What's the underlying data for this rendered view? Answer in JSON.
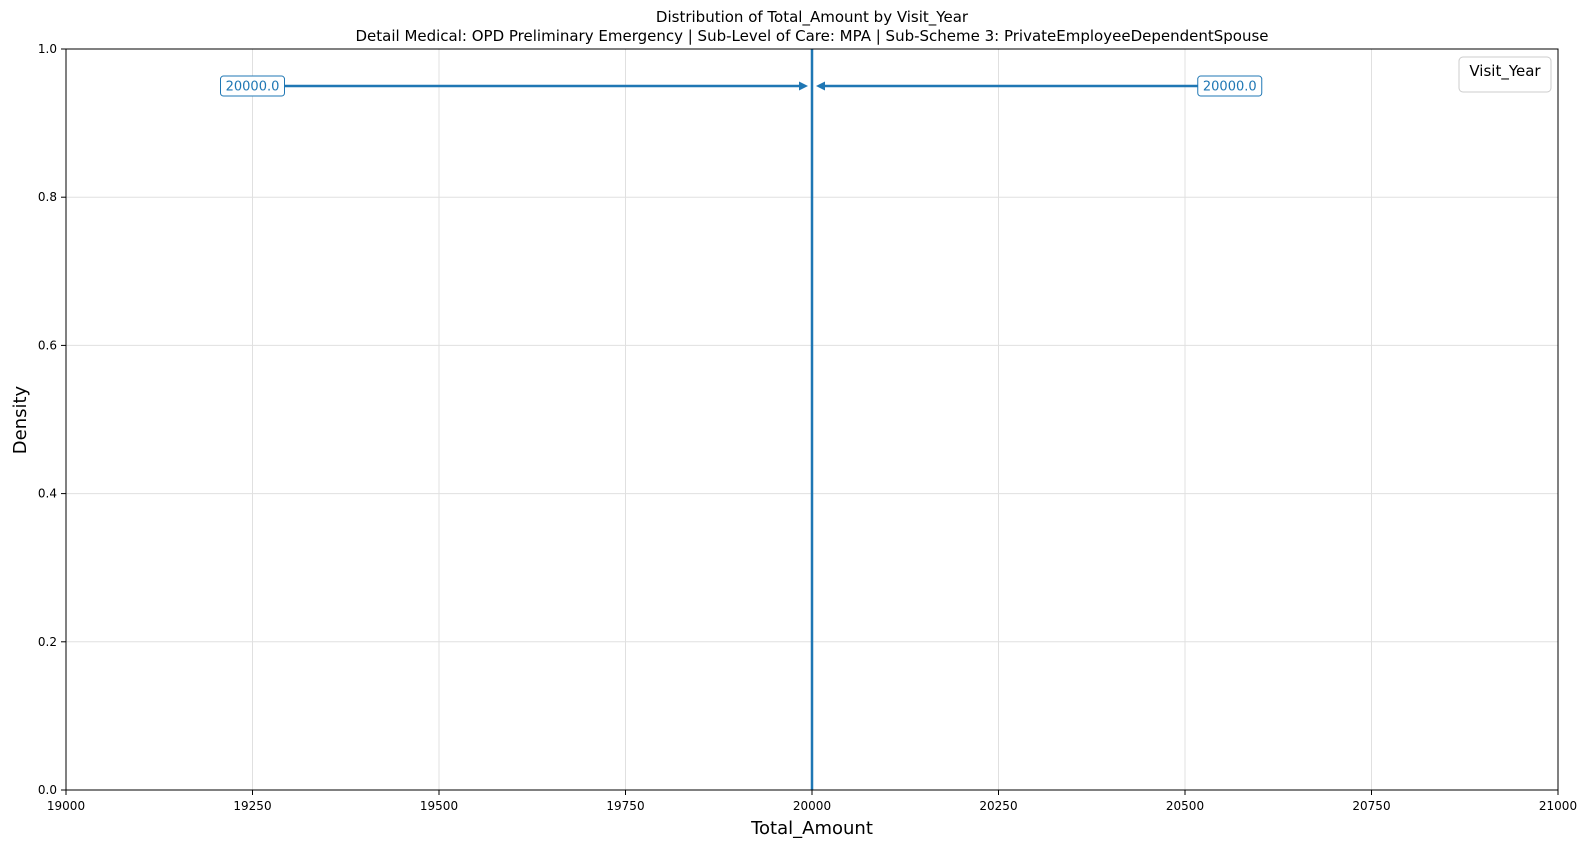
{
  "colors": {
    "series": "#1f77b4",
    "grid": "#e0e0e0",
    "axis": "#000000"
  },
  "chart_data": {
    "type": "line",
    "title": "Distribution of Total_Amount by Visit_Year",
    "subtitle": "Detail Medical: OPD Preliminary Emergency | Sub-Level of Care: MPA | Sub-Scheme 3: PrivateEmployeeDependentSpouse",
    "xlabel": "Total_Amount",
    "ylabel": "Density",
    "xlim": [
      19000,
      21000
    ],
    "ylim": [
      0,
      1.0
    ],
    "x_ticks": [
      19000,
      19250,
      19500,
      19750,
      20000,
      20250,
      20500,
      20750,
      21000
    ],
    "x_tick_labels": [
      "19000",
      "19250",
      "19500",
      "19750",
      "20000",
      "20250",
      "20500",
      "20750",
      "21000"
    ],
    "y_ticks": [
      0.0,
      0.2,
      0.4,
      0.6,
      0.8,
      1.0
    ],
    "y_tick_labels": [
      "0.0",
      "0.2",
      "0.4",
      "0.6",
      "0.8",
      "1.0"
    ],
    "grid": true,
    "legend": {
      "title": "Visit_Year",
      "placement": "top-right"
    },
    "reference_lines": [
      {
        "x": 20000,
        "style": "solid"
      },
      {
        "x": 20000,
        "style": "dashed"
      }
    ],
    "annotations": [
      {
        "text": "20000.0",
        "text_x": 19250,
        "text_y": 0.95,
        "arrow_to_x": 20000,
        "arrow_to_y": 0.95
      },
      {
        "text": "20000.0",
        "text_x": 20560,
        "text_y": 0.95,
        "arrow_to_x": 20000,
        "arrow_to_y": 0.95
      }
    ]
  }
}
